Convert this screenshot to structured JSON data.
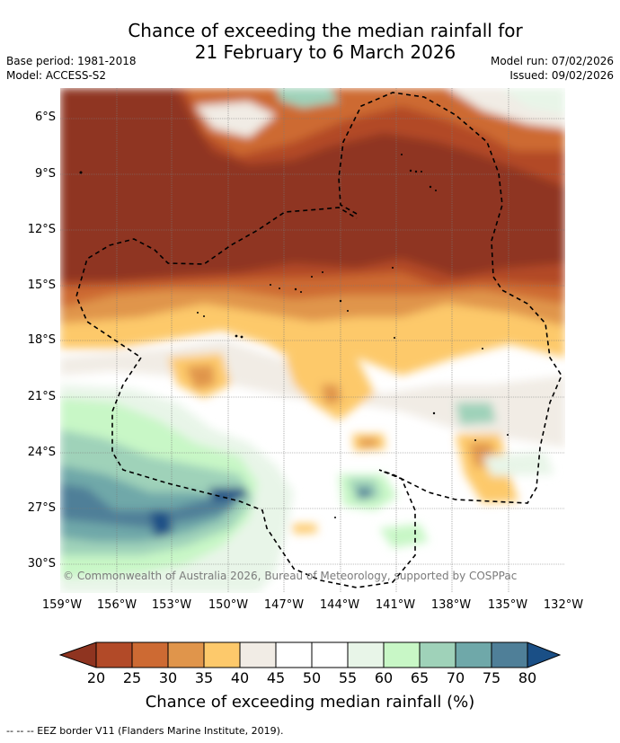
{
  "title": {
    "line1": "Chance of exceeding the median rainfall for",
    "line2": "21 February to 6 March 2026"
  },
  "meta": {
    "base_period": "Base period: 1981-2018",
    "model": "Model: ACCESS-S2",
    "model_run": "Model run: 07/02/2026",
    "issued": "Issued: 09/02/2026"
  },
  "axes": {
    "lat_labels": [
      "6°S",
      "9°S",
      "12°S",
      "15°S",
      "18°S",
      "21°S",
      "24°S",
      "27°S",
      "30°S"
    ],
    "lon_labels": [
      "159°W",
      "156°W",
      "153°W",
      "150°W",
      "147°W",
      "144°W",
      "141°W",
      "138°W",
      "135°W",
      "132°W"
    ]
  },
  "copyright": "© Commonwealth of Australia 2026, Bureau of Meteorology, supported by COSPPac",
  "colorbar": {
    "labels": [
      "20",
      "25",
      "30",
      "35",
      "40",
      "45",
      "50",
      "55",
      "60",
      "65",
      "70",
      "75",
      "80"
    ],
    "colors": {
      "below_20": "#8f3420",
      "20_25": "#b24a28",
      "25_30": "#cd6a33",
      "30_35": "#e0954b",
      "35_40": "#fdc96b",
      "40_45": "#f1ece5",
      "45_50": "#ffffff",
      "50_55": "#ffffff",
      "55_60": "#e8f5e8",
      "60_65": "#c8f7c6",
      "65_70": "#9fd2b9",
      "70_75": "#6fa8a9",
      "75_80": "#4f7f98",
      "above_80": "#1a4f86"
    },
    "title": "Chance of exceeding median rainfall (%)"
  },
  "eez_note": "--  --  -- EEZ border V11 (Flanders Marine Institute, 2019)."
}
